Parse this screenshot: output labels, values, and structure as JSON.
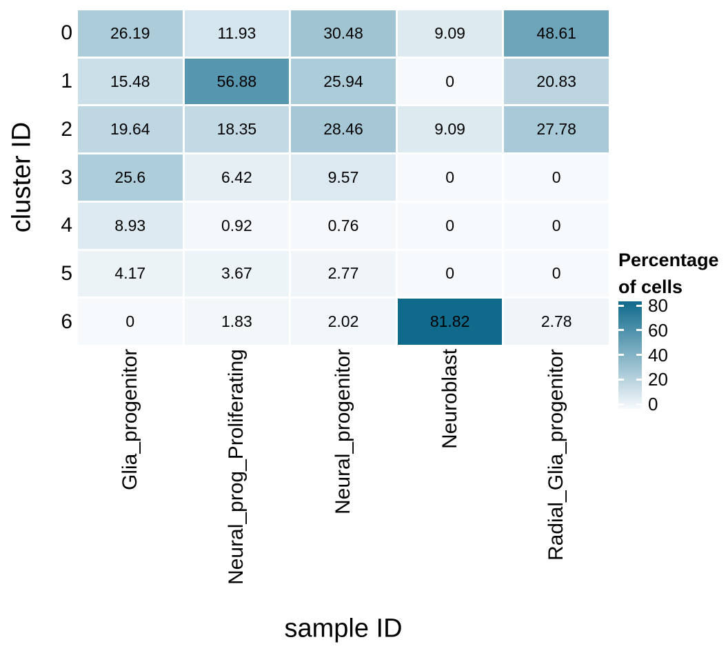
{
  "chart_data": {
    "type": "heatmap",
    "title": "",
    "xlabel": "sample ID",
    "ylabel": "cluster ID",
    "categories_x": [
      "Glia_progenitor",
      "Neural_prog_Proliferating",
      "Neural_progenitor",
      "Neuroblast",
      "Radial_Glia_progenitor"
    ],
    "categories_y": [
      "0",
      "1",
      "2",
      "3",
      "4",
      "5",
      "6"
    ],
    "values": [
      [
        26.19,
        11.93,
        30.48,
        9.09,
        48.61
      ],
      [
        15.48,
        56.88,
        25.94,
        0,
        20.83
      ],
      [
        19.64,
        18.35,
        28.46,
        9.09,
        27.78
      ],
      [
        25.6,
        6.42,
        9.57,
        0,
        0
      ],
      [
        8.93,
        0.92,
        0.76,
        0,
        0
      ],
      [
        4.17,
        3.67,
        2.77,
        0,
        0
      ],
      [
        0,
        1.83,
        2.02,
        81.82,
        2.78
      ]
    ],
    "value_range": [
      0,
      81.82
    ],
    "legend": {
      "title_line1": "Percentage",
      "title_line2": "of cells",
      "ticks": [
        "80",
        "60",
        "40",
        "20",
        "0"
      ],
      "position": "right"
    },
    "colors": {
      "low": "#F7FAFD",
      "high": "#0F6A8C"
    },
    "grid": "off"
  }
}
